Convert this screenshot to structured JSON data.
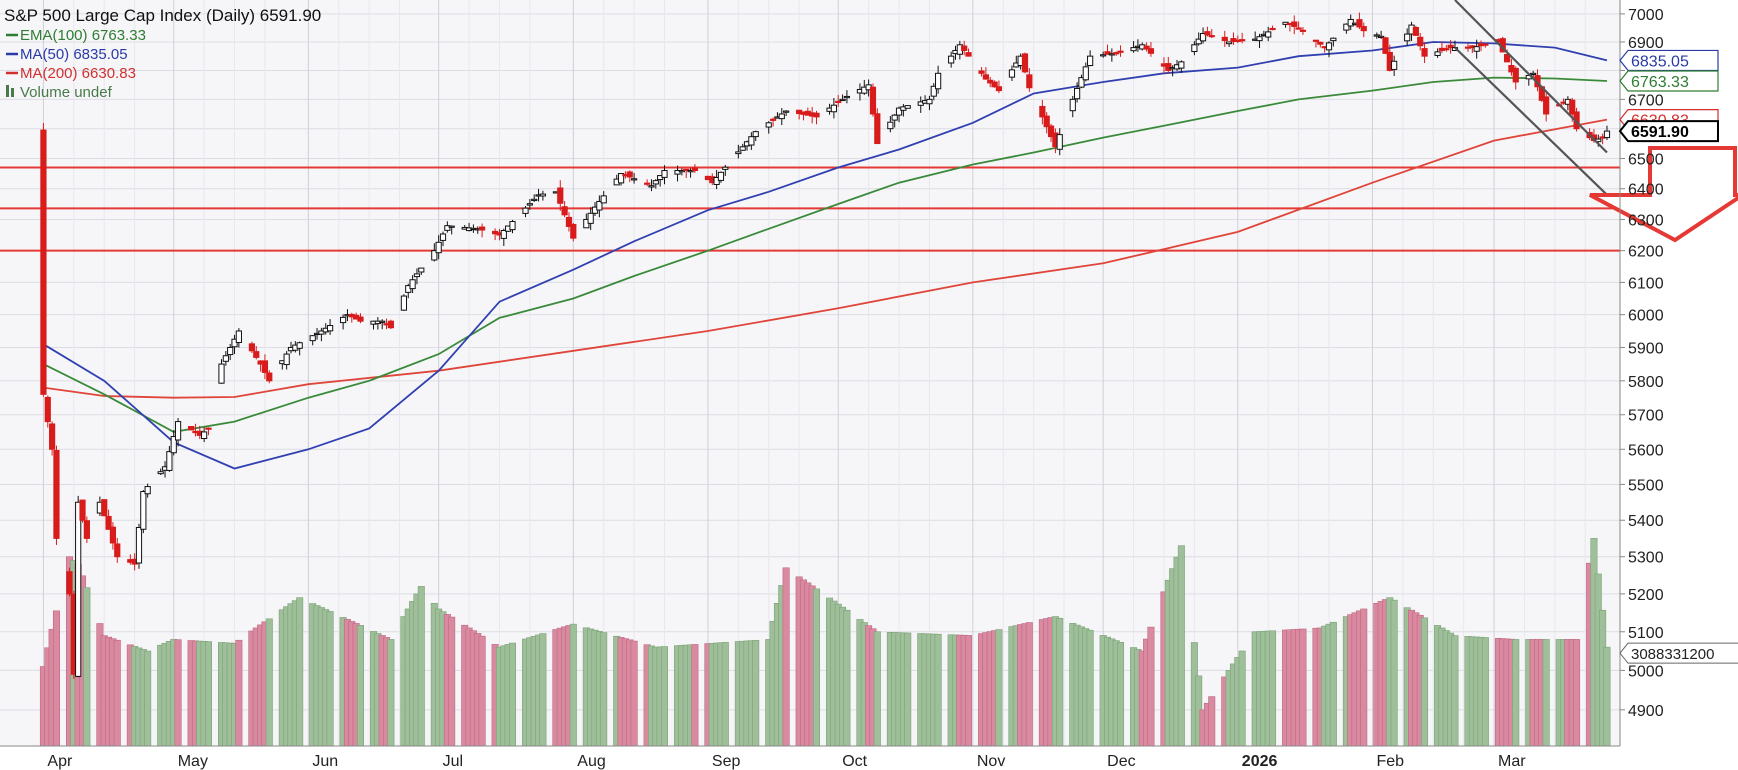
{
  "chart_data": {
    "type": "candlestick",
    "title": "S&P 500 Large Cap Index (Daily) 6591.90",
    "legend": [
      {
        "label": "EMA(100) 6763.33",
        "color": "#2e7d32"
      },
      {
        "label": "MA(50) 6835.05",
        "color": "#2a3aa6"
      },
      {
        "label": "MA(200) 6630.83",
        "color": "#d32f2f"
      },
      {
        "label": "Volume undef",
        "color": "#4a7a4a"
      }
    ],
    "legend_position": "top-left",
    "x_ticks": [
      "Apr",
      "May",
      "Jun",
      "Jul",
      "Aug",
      "Sep",
      "Oct",
      "Nov",
      "Dec",
      "2026",
      "Feb",
      "Mar"
    ],
    "y_ticks": [
      4900,
      5000,
      5100,
      5200,
      5300,
      5400,
      5500,
      5600,
      5700,
      5800,
      5900,
      6000,
      6100,
      6200,
      6300,
      6400,
      6500,
      6600,
      6700,
      6800,
      6900,
      7000
    ],
    "y_scale": "log",
    "ylim": [
      4810,
      7050
    ],
    "value_tags": [
      {
        "text": "6835.05",
        "value": 6835.05,
        "color": "#2a3aa6"
      },
      {
        "text": "6763.33",
        "value": 6763.33,
        "color": "#2e7d32"
      },
      {
        "text": "6630.83",
        "value": 6630.83,
        "color": "#d32f2f"
      },
      {
        "text": "6591.90",
        "value": 6591.9,
        "color": "#000000"
      }
    ],
    "volume_tag": "3088331200",
    "support_levels": [
      6470,
      6336,
      6200
    ],
    "price_path": [
      [
        "2025-04-01",
        5760
      ],
      [
        "2025-04-03",
        5600
      ],
      [
        "2025-04-04",
        5350
      ],
      [
        "2025-04-07",
        5200
      ],
      [
        "2025-04-08",
        4990
      ],
      [
        "2025-04-09",
        5450
      ],
      [
        "2025-04-11",
        5350
      ],
      [
        "2025-04-14",
        5450
      ],
      [
        "2025-04-18",
        5300
      ],
      [
        "2025-04-22",
        5280
      ],
      [
        "2025-04-24",
        5480
      ],
      [
        "2025-04-29",
        5550
      ],
      [
        "2025-05-02",
        5680
      ],
      [
        "2025-05-07",
        5640
      ],
      [
        "2025-05-09",
        5660
      ],
      [
        "2025-05-12",
        5850
      ],
      [
        "2025-05-16",
        5950
      ],
      [
        "2025-05-21",
        5850
      ],
      [
        "2025-05-23",
        5800
      ],
      [
        "2025-05-28",
        5900
      ],
      [
        "2025-06-04",
        5950
      ],
      [
        "2025-06-10",
        6000
      ],
      [
        "2025-06-13",
        5980
      ],
      [
        "2025-06-18",
        5980
      ],
      [
        "2025-06-20",
        5960
      ],
      [
        "2025-06-24",
        6090
      ],
      [
        "2025-06-30",
        6200
      ],
      [
        "2025-07-03",
        6280
      ],
      [
        "2025-07-10",
        6270
      ],
      [
        "2025-07-15",
        6250
      ],
      [
        "2025-07-24",
        6380
      ],
      [
        "2025-07-28",
        6390
      ],
      [
        "2025-08-01",
        6240
      ],
      [
        "2025-08-06",
        6340
      ],
      [
        "2025-08-12",
        6450
      ],
      [
        "2025-08-19",
        6410
      ],
      [
        "2025-08-22",
        6460
      ],
      [
        "2025-08-29",
        6460
      ],
      [
        "2025-09-02",
        6420
      ],
      [
        "2025-09-12",
        6590
      ],
      [
        "2025-09-19",
        6660
      ],
      [
        "2025-09-26",
        6640
      ],
      [
        "2025-10-03",
        6710
      ],
      [
        "2025-10-08",
        6750
      ],
      [
        "2025-10-10",
        6550
      ],
      [
        "2025-10-15",
        6670
      ],
      [
        "2025-10-22",
        6700
      ],
      [
        "2025-10-24",
        6790
      ],
      [
        "2025-10-29",
        6890
      ],
      [
        "2025-11-04",
        6770
      ],
      [
        "2025-11-07",
        6730
      ],
      [
        "2025-11-12",
        6850
      ],
      [
        "2025-11-14",
        6740
      ],
      [
        "2025-11-20",
        6540
      ],
      [
        "2025-11-24",
        6700
      ],
      [
        "2025-11-28",
        6850
      ],
      [
        "2025-12-04",
        6860
      ],
      [
        "2025-12-10",
        6890
      ],
      [
        "2025-12-16",
        6800
      ],
      [
        "2025-12-19",
        6830
      ],
      [
        "2025-12-24",
        6930
      ],
      [
        "2025-12-30",
        6900
      ],
      [
        "2026-01-05",
        6910
      ],
      [
        "2026-01-12",
        6970
      ],
      [
        "2026-01-16",
        6940
      ],
      [
        "2026-01-21",
        6880
      ],
      [
        "2026-01-27",
        6980
      ],
      [
        "2026-01-30",
        6940
      ],
      [
        "2026-02-03",
        6920
      ],
      [
        "2026-02-05",
        6800
      ],
      [
        "2026-02-10",
        6960
      ],
      [
        "2026-02-13",
        6850
      ],
      [
        "2026-02-19",
        6880
      ],
      [
        "2026-02-24",
        6880
      ],
      [
        "2026-03-02",
        6900
      ],
      [
        "2026-03-06",
        6760
      ],
      [
        "2026-03-10",
        6790
      ],
      [
        "2026-03-13",
        6650
      ],
      [
        "2026-03-18",
        6700
      ],
      [
        "2026-03-20",
        6600
      ],
      [
        "2026-03-24",
        6560
      ],
      [
        "2026-03-26",
        6570
      ],
      [
        "2026-03-27",
        6591.9
      ]
    ],
    "ema100_path": [
      [
        "2025-04-01",
        5850
      ],
      [
        "2025-04-15",
        5760
      ],
      [
        "2025-05-01",
        5650
      ],
      [
        "2025-05-15",
        5680
      ],
      [
        "2025-06-01",
        5750
      ],
      [
        "2025-06-15",
        5800
      ],
      [
        "2025-07-01",
        5880
      ],
      [
        "2025-07-15",
        5990
      ],
      [
        "2025-08-01",
        6050
      ],
      [
        "2025-08-15",
        6120
      ],
      [
        "2025-09-01",
        6200
      ],
      [
        "2025-09-15",
        6270
      ],
      [
        "2025-10-01",
        6350
      ],
      [
        "2025-10-15",
        6420
      ],
      [
        "2025-11-01",
        6480
      ],
      [
        "2025-11-15",
        6520
      ],
      [
        "2025-12-01",
        6570
      ],
      [
        "2025-12-15",
        6610
      ],
      [
        "2026-01-01",
        6660
      ],
      [
        "2026-01-15",
        6700
      ],
      [
        "2026-02-01",
        6730
      ],
      [
        "2026-02-15",
        6760
      ],
      [
        "2026-03-01",
        6775
      ],
      [
        "2026-03-15",
        6772
      ],
      [
        "2026-03-27",
        6763.33
      ]
    ],
    "ma50_path": [
      [
        "2025-04-01",
        5910
      ],
      [
        "2025-04-15",
        5800
      ],
      [
        "2025-05-01",
        5620
      ],
      [
        "2025-05-15",
        5545
      ],
      [
        "2025-06-01",
        5600
      ],
      [
        "2025-06-15",
        5660
      ],
      [
        "2025-07-01",
        5830
      ],
      [
        "2025-07-15",
        6040
      ],
      [
        "2025-08-01",
        6140
      ],
      [
        "2025-08-15",
        6230
      ],
      [
        "2025-09-01",
        6330
      ],
      [
        "2025-09-15",
        6390
      ],
      [
        "2025-10-01",
        6470
      ],
      [
        "2025-10-15",
        6530
      ],
      [
        "2025-11-01",
        6620
      ],
      [
        "2025-11-15",
        6720
      ],
      [
        "2025-12-01",
        6760
      ],
      [
        "2025-12-15",
        6790
      ],
      [
        "2026-01-01",
        6810
      ],
      [
        "2026-01-15",
        6850
      ],
      [
        "2026-02-01",
        6870
      ],
      [
        "2026-02-15",
        6900
      ],
      [
        "2026-03-01",
        6895
      ],
      [
        "2026-03-15",
        6880
      ],
      [
        "2026-03-27",
        6835.05
      ]
    ],
    "ma200_path": [
      [
        "2025-04-01",
        5780
      ],
      [
        "2025-04-15",
        5755
      ],
      [
        "2025-05-01",
        5750
      ],
      [
        "2025-05-15",
        5752
      ],
      [
        "2025-06-01",
        5790
      ],
      [
        "2025-07-01",
        5830
      ],
      [
        "2025-08-01",
        5890
      ],
      [
        "2025-09-01",
        5950
      ],
      [
        "2025-10-01",
        6020
      ],
      [
        "2025-11-01",
        6100
      ],
      [
        "2025-12-01",
        6160
      ],
      [
        "2026-01-01",
        6260
      ],
      [
        "2026-02-01",
        6420
      ],
      [
        "2026-03-01",
        6560
      ],
      [
        "2026-03-27",
        6630.83
      ]
    ],
    "channel_lines": [
      {
        "from": [
          "2026-02-20",
          7050
        ],
        "to": [
          "2026-03-27",
          6520
        ]
      },
      {
        "from": [
          "2026-02-20",
          6880
        ],
        "to": [
          "2026-03-27",
          6380
        ]
      }
    ],
    "volume_bars": [
      [
        "2025-04-01",
        5010
      ],
      [
        "2025-04-07",
        5300
      ],
      [
        "2025-04-09",
        5280
      ],
      [
        "2025-04-15",
        5090
      ],
      [
        "2025-04-25",
        5050
      ],
      [
        "2025-05-01",
        5080
      ],
      [
        "2025-05-15",
        5070
      ],
      [
        "2025-05-30",
        5190
      ],
      [
        "2025-06-20",
        5080
      ],
      [
        "2025-06-27",
        5220
      ],
      [
        "2025-07-01",
        5160
      ],
      [
        "2025-07-15",
        5060
      ],
      [
        "2025-08-01",
        5120
      ],
      [
        "2025-08-20",
        5060
      ],
      [
        "2025-09-15",
        5080
      ],
      [
        "2025-09-19",
        5270
      ],
      [
        "2025-10-10",
        5100
      ],
      [
        "2025-11-01",
        5090
      ],
      [
        "2025-11-20",
        5140
      ],
      [
        "2025-12-10",
        5050
      ],
      [
        "2025-12-19",
        5330
      ],
      [
        "2025-12-24",
        4900
      ],
      [
        "2026-01-05",
        5100
      ],
      [
        "2026-01-20",
        5110
      ],
      [
        "2026-02-05",
        5190
      ],
      [
        "2026-02-20",
        5090
      ],
      [
        "2026-03-06",
        5080
      ],
      [
        "2026-03-20",
        5080
      ],
      [
        "2026-03-24",
        5350
      ],
      [
        "2026-03-27",
        5060
      ]
    ]
  }
}
